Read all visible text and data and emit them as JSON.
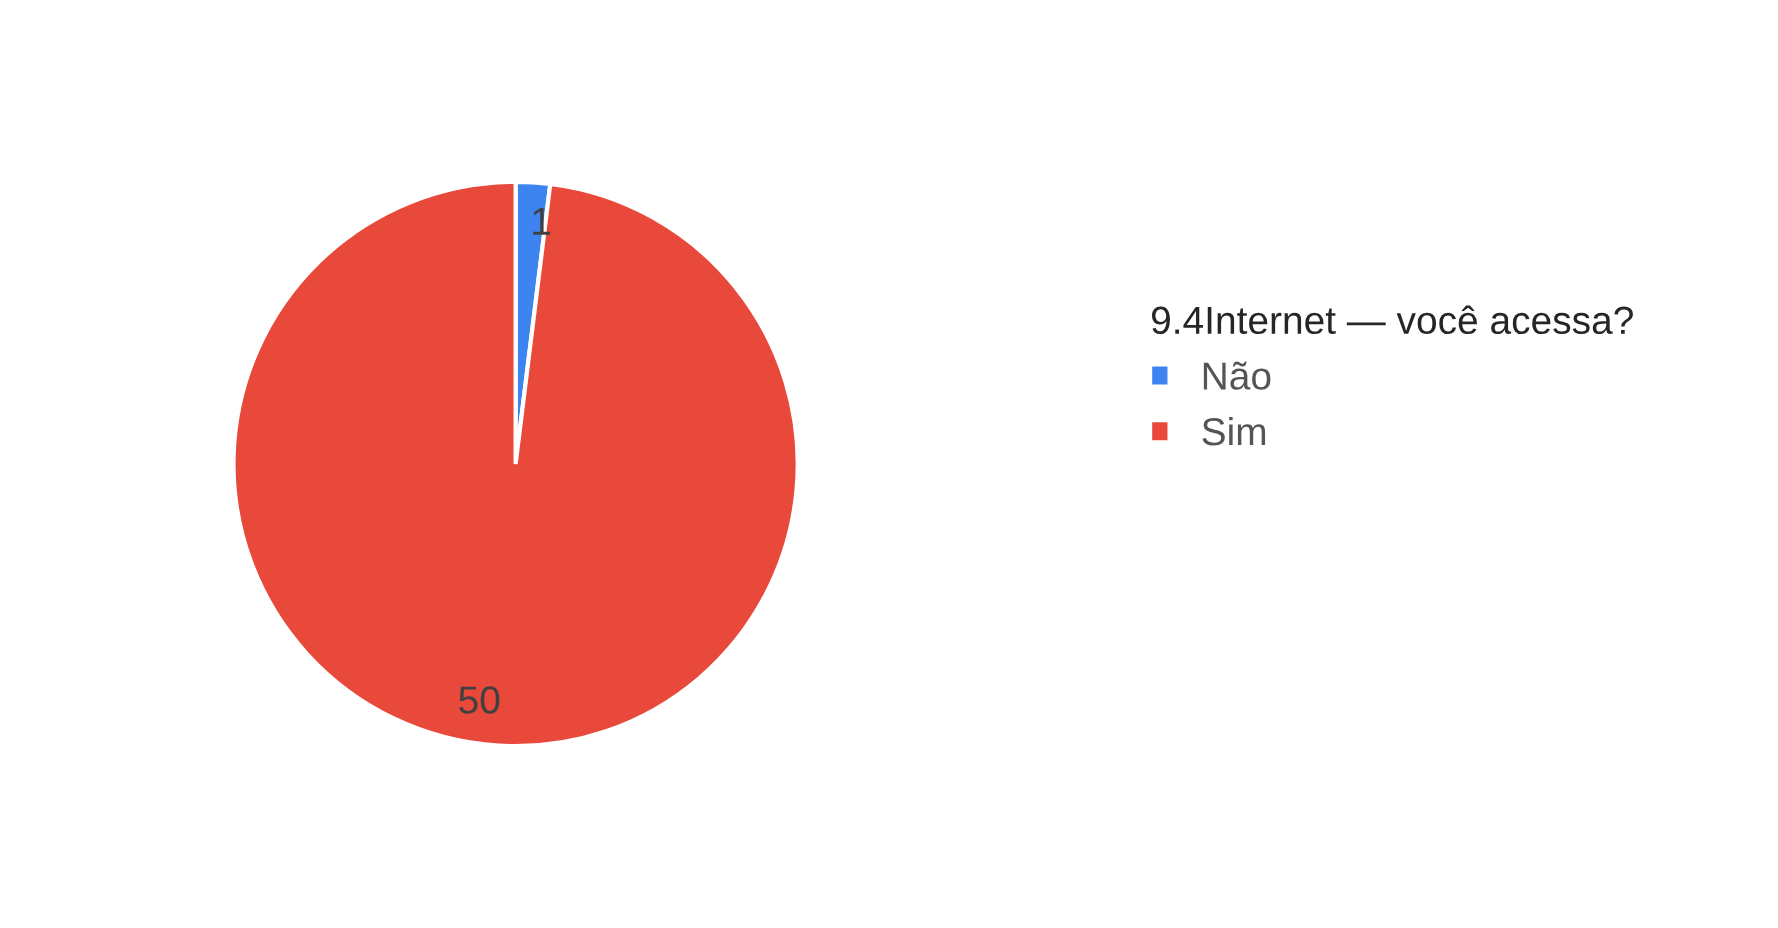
{
  "chart_data": {
    "type": "pie",
    "legend_title": "9.4Internet — você acessa?",
    "categories": [
      "Não",
      "Sim"
    ],
    "values": [
      1,
      50
    ],
    "colors": [
      "#3d84f0",
      "#e8493b"
    ],
    "data_labels": true,
    "legend": "right"
  }
}
